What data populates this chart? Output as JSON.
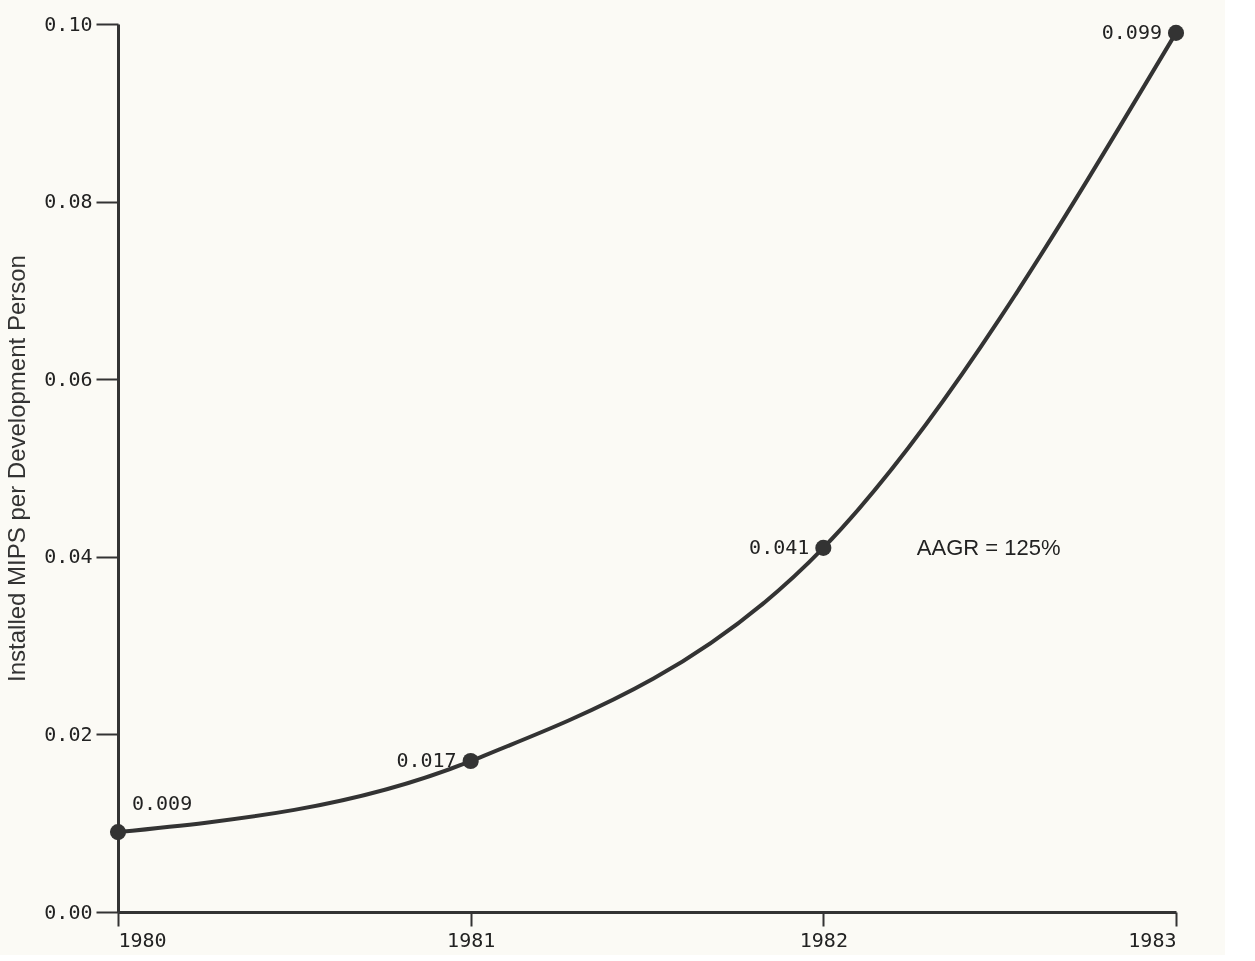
{
  "chart_data": {
    "type": "line",
    "ylabel": "Installed MIPS per Development Person",
    "x": [
      1980,
      1981,
      1982,
      1983
    ],
    "series": [
      {
        "color": "#333333",
        "values": [
          0.009,
          0.017,
          0.041,
          0.099
        ]
      }
    ],
    "xlim": [
      1980,
      1983
    ],
    "xticks": [
      1980,
      1981,
      1982,
      1983
    ],
    "ylim": [
      0,
      0.1
    ],
    "yticks": [
      {
        "value": 0,
        "label": "0.00"
      },
      0.02,
      0.04,
      0.06,
      0.08,
      {
        "value": 0.1,
        "label": "0.10"
      }
    ],
    "data_labels": true,
    "annotations": [
      "AAGR = 125%"
    ],
    "marker": "circle",
    "line_style": "solid",
    "grid": false,
    "legend": false
  }
}
